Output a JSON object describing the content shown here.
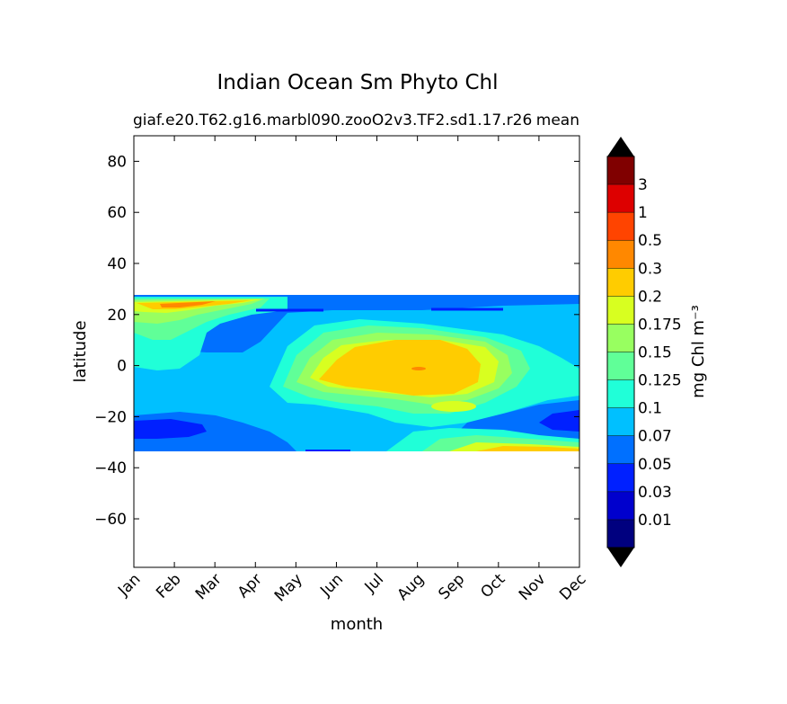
{
  "chart_data": {
    "type": "contourf",
    "title": "Indian Ocean Sm Phyto Chl",
    "subtitle": "giaf.e20.T62.g16.marbl090.zooO2v3.TF2.sd1.17.r26",
    "subtitle_right": "mean",
    "xlabel": "month",
    "ylabel": "latitude",
    "x_tick_labels": [
      "Jan",
      "Feb",
      "Mar",
      "Apr",
      "May",
      "Jun",
      "Jul",
      "Aug",
      "Sep",
      "Oct",
      "Nov",
      "Dec"
    ],
    "y_ticks": [
      80,
      60,
      40,
      20,
      0,
      -20,
      -40,
      -60
    ],
    "y_tick_labels": [
      "80",
      "60",
      "40",
      "20",
      "0",
      "−20",
      "−40",
      "−60"
    ],
    "xlim": [
      0,
      11
    ],
    "ylim": [
      -79,
      90
    ],
    "data_lat_range": [
      -34,
      27
    ],
    "colorbar": {
      "label": "mg Chl m⁻³",
      "levels": [
        "0.01",
        "0.03",
        "0.05",
        "0.07",
        "0.1",
        "0.125",
        "0.15",
        "0.175",
        "0.2",
        "0.3",
        "0.5",
        "1",
        "3"
      ],
      "colors": [
        "#00007f",
        "#0000cd",
        "#0020ff",
        "#0070ff",
        "#00c0ff",
        "#20ffd8",
        "#60ff98",
        "#98ff60",
        "#d8ff20",
        "#ffcc00",
        "#ff8800",
        "#ff4400",
        "#dd0000",
        "#800000"
      ],
      "extend": "both"
    },
    "contour_regions": [
      {
        "name": "south-subtropical-low",
        "lat_center": -25,
        "month_center": 0.2,
        "level_index": 2,
        "description": "0.03-0.05"
      },
      {
        "name": "equatorial-high",
        "lat_center": -2,
        "month_center": 7,
        "level_index": 9,
        "description": "0.2-0.3"
      },
      {
        "name": "arabian-sea-bloom",
        "lat_center": 23,
        "month_center": 1,
        "level_index": 10,
        "description": "0.3-0.5"
      },
      {
        "name": "southern-edge-bloom",
        "lat_center": -32,
        "month_center": 10,
        "level_index": 9,
        "description": "0.2-0.3"
      }
    ]
  }
}
